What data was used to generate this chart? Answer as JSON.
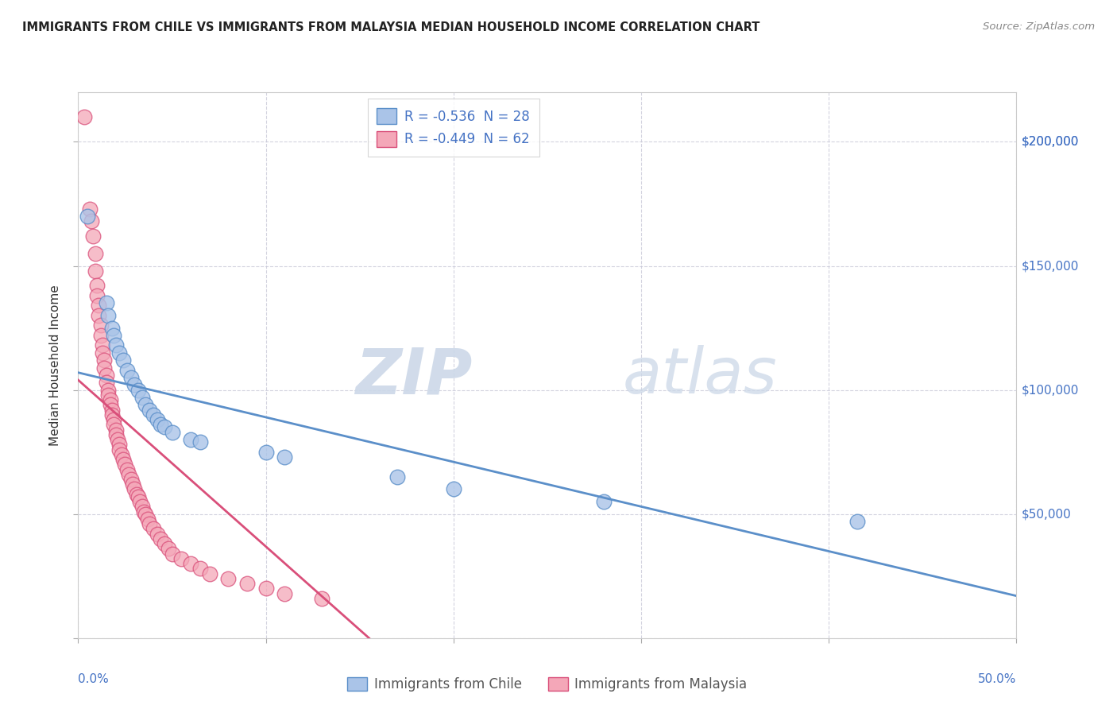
{
  "title": "IMMIGRANTS FROM CHILE VS IMMIGRANTS FROM MALAYSIA MEDIAN HOUSEHOLD INCOME CORRELATION CHART",
  "source": "Source: ZipAtlas.com",
  "ylabel": "Median Household Income",
  "xlim": [
    0.0,
    0.5
  ],
  "ylim": [
    0,
    220000
  ],
  "xtick_vals": [
    0.0,
    0.1,
    0.2,
    0.3,
    0.4,
    0.5
  ],
  "ytick_vals": [
    0,
    50000,
    100000,
    150000,
    200000
  ],
  "ytick_labels_right": [
    "",
    "$50,000",
    "$100,000",
    "$150,000",
    "$200,000"
  ],
  "legend1_label": "R = -0.536  N = 28",
  "legend2_label": "R = -0.449  N = 62",
  "legend_bottom1": "Immigrants from Chile",
  "legend_bottom2": "Immigrants from Malaysia",
  "color_chile": "#aac4e8",
  "color_malaysia": "#f4a7b8",
  "line_chile_color": "#5b8fc9",
  "line_malaysia_color": "#d94f7a",
  "watermark_zip": "ZIP",
  "watermark_atlas": "atlas",
  "background_color": "#ffffff",
  "grid_color": "#c8c8d8",
  "blue_label_color": "#4472c4",
  "chile_scatter": [
    [
      0.005,
      170000
    ],
    [
      0.015,
      135000
    ],
    [
      0.016,
      130000
    ],
    [
      0.018,
      125000
    ],
    [
      0.019,
      122000
    ],
    [
      0.02,
      118000
    ],
    [
      0.022,
      115000
    ],
    [
      0.024,
      112000
    ],
    [
      0.026,
      108000
    ],
    [
      0.028,
      105000
    ],
    [
      0.03,
      102000
    ],
    [
      0.032,
      100000
    ],
    [
      0.034,
      97000
    ],
    [
      0.036,
      94000
    ],
    [
      0.038,
      92000
    ],
    [
      0.04,
      90000
    ],
    [
      0.042,
      88000
    ],
    [
      0.044,
      86000
    ],
    [
      0.046,
      85000
    ],
    [
      0.05,
      83000
    ],
    [
      0.06,
      80000
    ],
    [
      0.065,
      79000
    ],
    [
      0.1,
      75000
    ],
    [
      0.11,
      73000
    ],
    [
      0.17,
      65000
    ],
    [
      0.2,
      60000
    ],
    [
      0.28,
      55000
    ],
    [
      0.415,
      47000
    ]
  ],
  "malaysia_scatter": [
    [
      0.003,
      210000
    ],
    [
      0.006,
      173000
    ],
    [
      0.007,
      168000
    ],
    [
      0.008,
      162000
    ],
    [
      0.009,
      155000
    ],
    [
      0.009,
      148000
    ],
    [
      0.01,
      142000
    ],
    [
      0.01,
      138000
    ],
    [
      0.011,
      134000
    ],
    [
      0.011,
      130000
    ],
    [
      0.012,
      126000
    ],
    [
      0.012,
      122000
    ],
    [
      0.013,
      118000
    ],
    [
      0.013,
      115000
    ],
    [
      0.014,
      112000
    ],
    [
      0.014,
      109000
    ],
    [
      0.015,
      106000
    ],
    [
      0.015,
      103000
    ],
    [
      0.016,
      100000
    ],
    [
      0.016,
      98000
    ],
    [
      0.017,
      96000
    ],
    [
      0.017,
      94000
    ],
    [
      0.018,
      92000
    ],
    [
      0.018,
      90000
    ],
    [
      0.019,
      88000
    ],
    [
      0.019,
      86000
    ],
    [
      0.02,
      84000
    ],
    [
      0.02,
      82000
    ],
    [
      0.021,
      80000
    ],
    [
      0.022,
      78000
    ],
    [
      0.022,
      76000
    ],
    [
      0.023,
      74000
    ],
    [
      0.024,
      72000
    ],
    [
      0.025,
      70000
    ],
    [
      0.026,
      68000
    ],
    [
      0.027,
      66000
    ],
    [
      0.028,
      64000
    ],
    [
      0.029,
      62000
    ],
    [
      0.03,
      60000
    ],
    [
      0.031,
      58000
    ],
    [
      0.032,
      57000
    ],
    [
      0.033,
      55000
    ],
    [
      0.034,
      53000
    ],
    [
      0.035,
      51000
    ],
    [
      0.036,
      50000
    ],
    [
      0.037,
      48000
    ],
    [
      0.038,
      46000
    ],
    [
      0.04,
      44000
    ],
    [
      0.042,
      42000
    ],
    [
      0.044,
      40000
    ],
    [
      0.046,
      38000
    ],
    [
      0.048,
      36000
    ],
    [
      0.05,
      34000
    ],
    [
      0.055,
      32000
    ],
    [
      0.06,
      30000
    ],
    [
      0.065,
      28000
    ],
    [
      0.07,
      26000
    ],
    [
      0.08,
      24000
    ],
    [
      0.09,
      22000
    ],
    [
      0.1,
      20000
    ],
    [
      0.11,
      18000
    ],
    [
      0.13,
      16000
    ]
  ],
  "chile_trendline": [
    [
      0.0,
      107000
    ],
    [
      0.5,
      17000
    ]
  ],
  "malaysia_trendline": [
    [
      0.0,
      104000
    ],
    [
      0.155,
      0
    ]
  ]
}
